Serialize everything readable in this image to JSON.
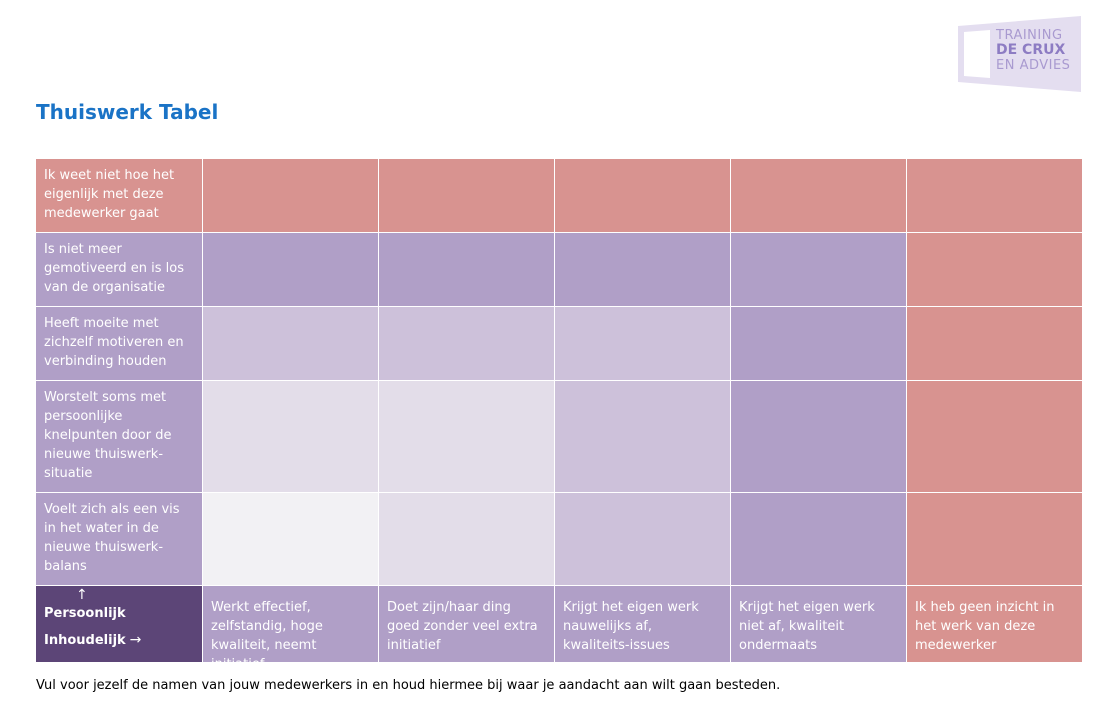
{
  "logo": {
    "line1": "TRAINING",
    "line2": "DE CRUX",
    "line3": "EN ADVIES"
  },
  "title": "Thuiswerk Tabel",
  "rows": [
    {
      "label": "Ik weet niet hoe het eigenlijk met deze medewerker gaat",
      "colors": [
        "#d89390",
        "#d89390",
        "#d89390",
        "#d89390",
        "#d89390"
      ]
    },
    {
      "label": "Is niet meer gemotiveerd en is los van de organisatie",
      "colors": [
        "#b09fc7",
        "#b09fc7",
        "#b09fc7",
        "#b09fc7",
        "#d89390"
      ]
    },
    {
      "label": "Heeft moeite met zichzelf motiveren en verbinding houden",
      "colors": [
        "#cdc1da",
        "#cdc1da",
        "#cdc1da",
        "#b09fc7",
        "#d89390"
      ]
    },
    {
      "label": "Worstelt soms met persoonlijke knelpunten door de nieuwe thuiswerk-situatie",
      "colors": [
        "#e3dde9",
        "#e3dde9",
        "#cdc1da",
        "#b09fc7",
        "#d89390"
      ]
    },
    {
      "label": "Voelt zich als een vis in het water in de nieuwe thuiswerk-balans",
      "colors": [
        "#f2f1f4",
        "#e3dde9",
        "#cdc1da",
        "#b09fc7",
        "#d89390"
      ]
    }
  ],
  "corner": {
    "up_arrow": "↑",
    "personal": "Persoonlijk",
    "content": "Inhoudelijk",
    "right_arrow": "→"
  },
  "columns": [
    {
      "label": "Werkt effectief, zelfstandig, hoge kwaliteit, neemt initiatief",
      "color": "#b09fc7"
    },
    {
      "label": "Doet zijn/haar ding goed zonder veel extra initiatief",
      "color": "#b09fc7"
    },
    {
      "label": "Krijgt het eigen werk nauwelijks af, kwaliteits-issues",
      "color": "#b09fc7"
    },
    {
      "label": "Krijgt het eigen werk niet af, kwaliteit ondermaats",
      "color": "#b09fc7"
    },
    {
      "label": "Ik heb geen inzicht in het werk van deze medewerker",
      "color": "#d89390"
    }
  ],
  "footer": "Vul voor jezelf de namen van jouw medewerkers in en houd hiermee bij waar je aandacht aan wilt gaan besteden."
}
